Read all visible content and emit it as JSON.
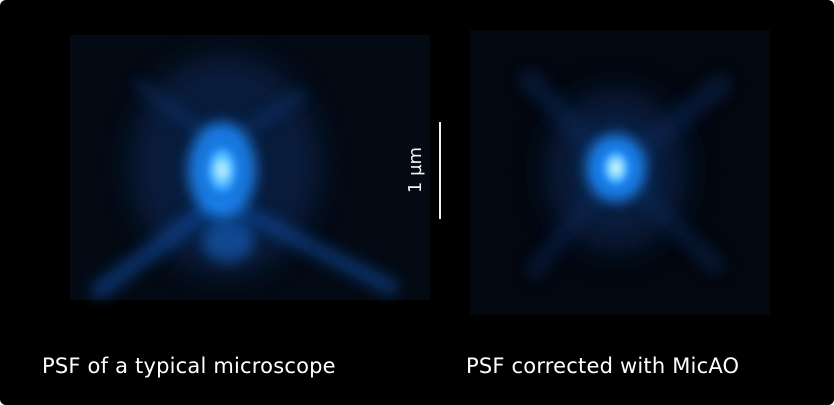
{
  "scale_bar": {
    "label": "1 µm"
  },
  "captions": {
    "left": "PSF of a typical microscope",
    "right": "PSF corrected with MicAO"
  },
  "colors": {
    "background": "#000000",
    "psf_core": "#e8fbff",
    "psf_glow": "#1a8cff",
    "psf_halo": "#0d3f8a",
    "text": "#ffffff"
  }
}
